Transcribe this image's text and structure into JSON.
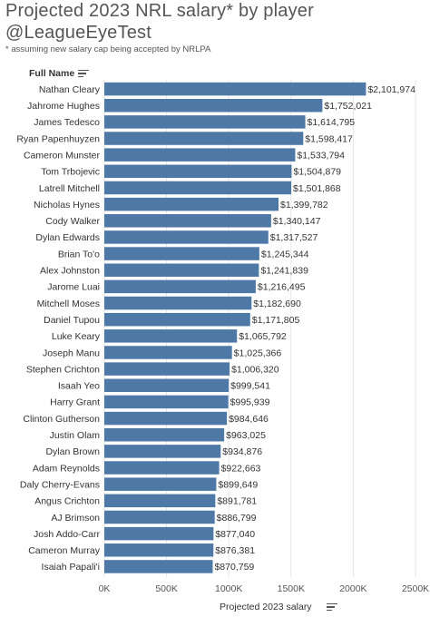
{
  "title_line1": "Projected 2023 NRL salary* by player",
  "title_line2": "@LeagueEyeTest",
  "subtitle": "* assuming new salary cap being accepted by NRLPA",
  "row_header": "Full Name",
  "x_axis_title": "Projected 2023 salary",
  "colors": {
    "bar": "#4e79a7",
    "grid": "#e6e6e6",
    "text": "#333333"
  },
  "icons": {
    "row_header_sort": "sort-icon",
    "x_axis_sort": "sort-icon"
  },
  "chart_data": {
    "type": "bar",
    "orientation": "horizontal",
    "title": "Projected 2023 NRL salary* by player",
    "xlabel": "Projected 2023 salary",
    "ylabel": "Full Name",
    "xlim": [
      0,
      2500000
    ],
    "x_ticks": [
      0,
      500000,
      1000000,
      1500000,
      2000000,
      2500000
    ],
    "x_tick_labels": [
      "0K",
      "500K",
      "1000K",
      "1500K",
      "2000K",
      "2500K"
    ],
    "grid": true,
    "categories": [
      "Nathan Cleary",
      "Jahrome Hughes",
      "James Tedesco",
      "Ryan Papenhuyzen",
      "Cameron Munster",
      "Tom Trbojevic",
      "Latrell Mitchell",
      "Nicholas Hynes",
      "Cody Walker",
      "Dylan Edwards",
      "Brian To'o",
      "Alex Johnston",
      "Jarome Luai",
      "Mitchell Moses",
      "Daniel Tupou",
      "Luke Keary",
      "Joseph Manu",
      "Stephen Crichton",
      "Isaah Yeo",
      "Harry Grant",
      "Clinton Gutherson",
      "Justin Olam",
      "Dylan Brown",
      "Adam Reynolds",
      "Daly Cherry-Evans",
      "Angus Crichton",
      "AJ Brimson",
      "Josh Addo-Carr",
      "Cameron Murray",
      "Isaiah Papali'i"
    ],
    "values": [
      2101974,
      1752021,
      1614795,
      1598417,
      1533794,
      1504879,
      1501868,
      1399782,
      1340147,
      1317527,
      1245344,
      1241839,
      1216495,
      1182690,
      1171805,
      1065792,
      1025366,
      1006320,
      999541,
      995939,
      984646,
      963025,
      934876,
      922663,
      899649,
      891781,
      886799,
      877040,
      876381,
      870759
    ],
    "value_labels": [
      "$2,101,974",
      "$1,752,021",
      "$1,614,795",
      "$1,598,417",
      "$1,533,794",
      "$1,504,879",
      "$1,501,868",
      "$1,399,782",
      "$1,340,147",
      "$1,317,527",
      "$1,245,344",
      "$1,241,839",
      "$1,216,495",
      "$1,182,690",
      "$1,171,805",
      "$1,065,792",
      "$1,025,366",
      "$1,006,320",
      "$999,541",
      "$995,939",
      "$984,646",
      "$963,025",
      "$934,876",
      "$922,663",
      "$899,649",
      "$891,781",
      "$886,799",
      "$877,040",
      "$876,381",
      "$870,759"
    ]
  }
}
